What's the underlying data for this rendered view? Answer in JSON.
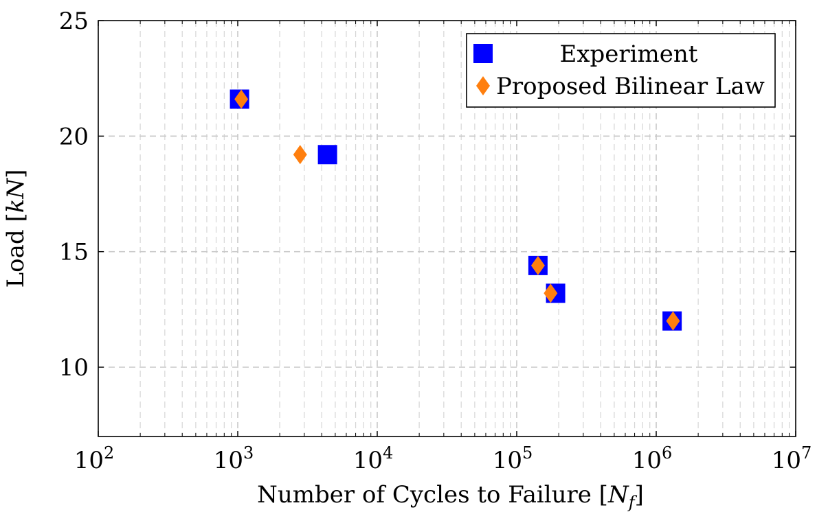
{
  "chart_data": {
    "type": "scatter",
    "xscale": "log",
    "xlim": [
      100,
      10000000
    ],
    "ylim": [
      7,
      25
    ],
    "xlabel_base": "Number of Cycles to Failure [",
    "xlabel_math": "N",
    "xlabel_sub": "f",
    "xlabel_end": "]",
    "ylabel_base": "Load [",
    "ylabel_math": "kN",
    "ylabel_end": "]",
    "x_ticks": [
      {
        "value": 100,
        "base": "10",
        "exp": "2"
      },
      {
        "value": 1000,
        "base": "10",
        "exp": "3"
      },
      {
        "value": 10000,
        "base": "10",
        "exp": "4"
      },
      {
        "value": 100000,
        "base": "10",
        "exp": "5"
      },
      {
        "value": 1000000,
        "base": "10",
        "exp": "6"
      },
      {
        "value": 10000000,
        "base": "10",
        "exp": "7"
      }
    ],
    "y_ticks": [
      {
        "value": 10,
        "label": "10"
      },
      {
        "value": 15,
        "label": "15"
      },
      {
        "value": 20,
        "label": "20"
      },
      {
        "value": 25,
        "label": "25"
      }
    ],
    "grid": true,
    "legend_position": "top-right",
    "series": [
      {
        "name": "Experiment",
        "marker": "square",
        "color": "#0000ff",
        "points": [
          {
            "x": 1030,
            "y": 21.6
          },
          {
            "x": 4400,
            "y": 19.2
          },
          {
            "x": 142000,
            "y": 14.4
          },
          {
            "x": 190000,
            "y": 13.2
          },
          {
            "x": 1300000,
            "y": 12.0
          }
        ]
      },
      {
        "name": "Proposed Bilinear Law",
        "marker": "diamond",
        "color": "#ff7f0e",
        "points": [
          {
            "x": 1060,
            "y": 21.6
          },
          {
            "x": 2800,
            "y": 19.2
          },
          {
            "x": 142000,
            "y": 14.4
          },
          {
            "x": 175000,
            "y": 13.2
          },
          {
            "x": 1320000,
            "y": 12.0
          }
        ]
      }
    ]
  }
}
